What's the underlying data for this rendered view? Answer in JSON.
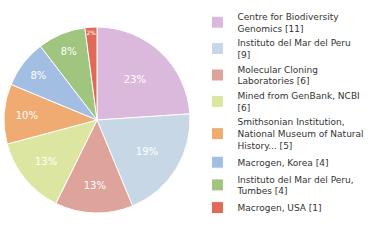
{
  "chart_data": {
    "type": "pie",
    "categories": [
      "Centre for Biodiversity Genomics [11]",
      "Instituto del Mar del Peru [9]",
      "Molecular Cloning Laboratories [6]",
      "Mined from GenBank, NCBI [6]",
      "Smithsonian Institution, National Museum of Natural History... [5]",
      "Macrogen, Korea [4]",
      "Instituto del Mar del Peru, Tumbes [4]",
      "Macrogen, USA [1]"
    ],
    "values": [
      23,
      19,
      13,
      13,
      10,
      8,
      8,
      2
    ],
    "value_labels": [
      "23%",
      "19%",
      "13%",
      "13%",
      "10%",
      "8%",
      "8%",
      "2%"
    ],
    "colors": [
      "#dbb9dd",
      "#c8d7e6",
      "#dea39b",
      "#dde6a1",
      "#efab72",
      "#a3bee3",
      "#9fc57e",
      "#e06a57"
    ],
    "data_labels": true,
    "legend": "right"
  }
}
